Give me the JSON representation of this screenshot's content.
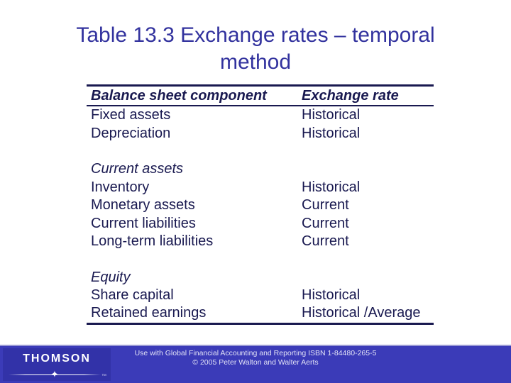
{
  "slide": {
    "title": {
      "line1": "Table 13.3 Exchange rates – temporal",
      "line2": "method"
    }
  },
  "table": {
    "headers": {
      "component": "Balance sheet component",
      "rate": "Exchange rate"
    },
    "rows": [
      {
        "component": "Fixed assets",
        "rate": "Historical"
      },
      {
        "component": "Depreciation",
        "rate": "Historical"
      },
      {
        "component": "",
        "rate": ""
      },
      {
        "component": "Current assets",
        "rate": ""
      },
      {
        "component": "Inventory",
        "rate": "Historical"
      },
      {
        "component": "Monetary assets",
        "rate": "Current"
      },
      {
        "component": "Current liabilities",
        "rate": "Current"
      },
      {
        "component": "Long-term liabilities",
        "rate": "Current"
      },
      {
        "component": "",
        "rate": ""
      },
      {
        "component": "Equity",
        "rate": ""
      },
      {
        "component": "Share capital",
        "rate": "Historical"
      },
      {
        "component": "Retained earnings",
        "rate": "Historical /Average"
      }
    ]
  },
  "footer": {
    "brand": "THOMSON",
    "trademark": "™",
    "star": "✦",
    "credit_line1": "Use with Global Financial Accounting and Reporting ISBN 1-84480-265-5",
    "credit_line2": "© 2005 Peter Walton and Walter Aerts"
  },
  "colors": {
    "title_blue": "#32329e",
    "table_navy": "#191950",
    "footer_blue": "#3b3bb8",
    "logo_box_blue": "#3232a8"
  }
}
